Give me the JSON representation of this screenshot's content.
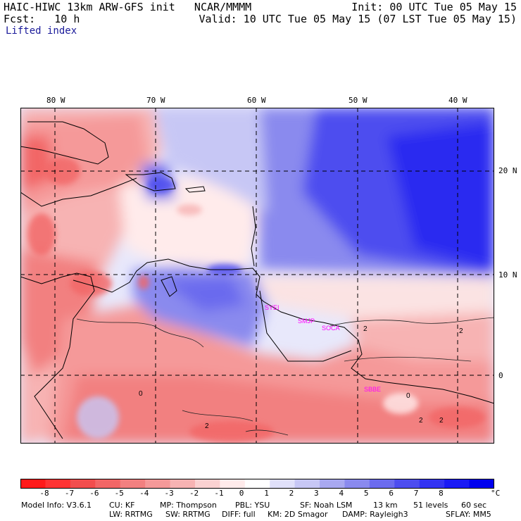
{
  "header": {
    "line1_left": "HAIC-HIWC 13km ARW-GFS init   NCAR/MMMM",
    "line1_right": "Init: 00 UTC Tue 05 May 15",
    "line2_left": "Fcst:   10 h",
    "line2_right": "Valid: 10 UTC Tue 05 May 15 (07 LST Tue 05 May 15)",
    "field_name": "Lifted index"
  },
  "map": {
    "lon_labels": [
      "80 W",
      "70 W",
      "60 W",
      "50 W",
      "40 W"
    ],
    "lat_labels": [
      "20 N",
      "10 N",
      "0"
    ],
    "contour_labels": [
      "2",
      "2",
      "0",
      "2",
      "2",
      "0",
      "2"
    ],
    "stations": [
      "SYEI",
      "SMJP",
      "SOCA",
      "SBBE"
    ],
    "station_color": "#ff00ff"
  },
  "colorbar": {
    "ticks": [
      "-8",
      "-7",
      "-6",
      "-5",
      "-4",
      "-3",
      "-2",
      "-1",
      "0",
      "1",
      "2",
      "3",
      "4",
      "5",
      "6",
      "7",
      "8"
    ],
    "unit": "°C",
    "colors": [
      "#ff1a1a",
      "#ff3333",
      "#f24d4d",
      "#f26666",
      "#f28080",
      "#f59999",
      "#f7b3b3",
      "#fad1d1",
      "#ffebeb",
      "#ffffff",
      "#e0e0fa",
      "#c7c7f5",
      "#a8a8f0",
      "#8a8aee",
      "#6b6bee",
      "#4d4def",
      "#3333f2",
      "#1a1af5",
      "#0000ee"
    ]
  },
  "model_info": {
    "line1": [
      "Model Info: V3.6.1",
      "CU: KF",
      "MP: Thompson",
      "PBL: YSU",
      "SF: Noah LSM",
      "13 km",
      "51 levels",
      "60 sec"
    ],
    "line2": [
      "LW: RRTMG",
      "SW: RRTMG",
      "DIFF: full",
      "KM: 2D Smagor",
      "DAMP: Rayleigh3",
      "SFLAY: MM5"
    ]
  }
}
